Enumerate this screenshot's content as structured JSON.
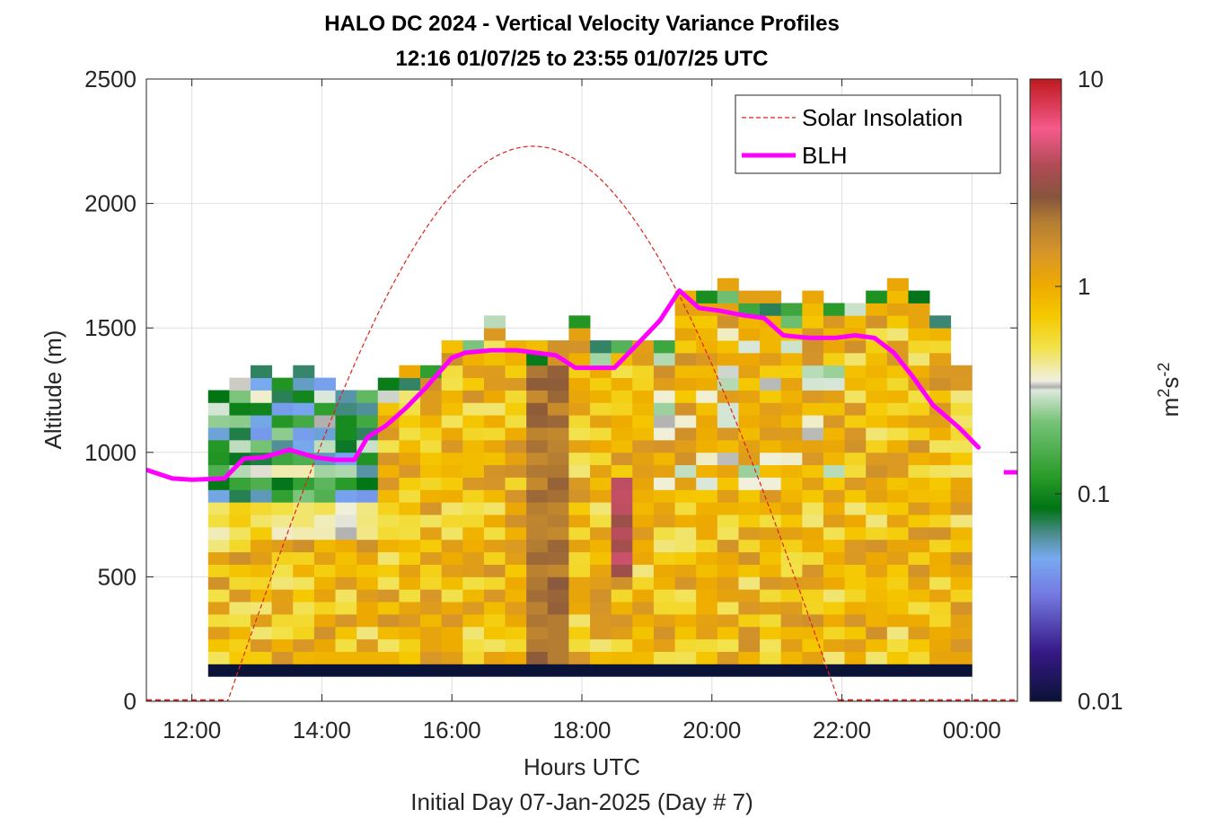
{
  "chart_data": {
    "type": "heatmap",
    "title": "HALO DC 2024 - Vertical Velocity Variance Profiles",
    "subtitle": "12:16 01/07/25 to 23:55 01/07/25  UTC",
    "xlabel": "Hours UTC",
    "x_sublabel": "Initial Day 07-Jan-2025 (Day # 7)",
    "ylabel": "Altitude (m)",
    "colorbar_label": "m²s⁻²",
    "colorbar_label_parts": {
      "unit1": "m",
      "exp1": "2",
      "unit2": "s",
      "exp2": "-2"
    },
    "xlim": [
      11.3,
      24.7
    ],
    "ylim": [
      0,
      2500
    ],
    "x_ticks": [
      12,
      14,
      16,
      18,
      20,
      22,
      24
    ],
    "x_tick_labels": [
      "12:00",
      "14:00",
      "16:00",
      "18:00",
      "20:00",
      "22:00",
      "00:00"
    ],
    "y_ticks": [
      0,
      500,
      1000,
      1500,
      2000,
      2500
    ],
    "y_tick_labels": [
      "0",
      "500",
      "1000",
      "1500",
      "2000",
      "2500"
    ],
    "color_scale": "log",
    "clim": [
      0.01,
      10
    ],
    "colorbar_ticks": [
      0.01,
      0.1,
      1,
      10
    ],
    "colorbar_tick_labels": [
      "0.01",
      "0.1",
      "1",
      "10"
    ],
    "grid": true,
    "legend_position": "top-right",
    "legend": [
      {
        "name": "Solar Insolation",
        "style": "dashed",
        "color": "#e0201b"
      },
      {
        "name": "BLH",
        "style": "solid",
        "color": "#ff00ff"
      }
    ],
    "heatmap_time_range": [
      12.25,
      24.0
    ],
    "heatmap_columns": 36,
    "heatmap_altitude_bottom": 100,
    "heatmap_bin_height": 50,
    "column_top_altitudes": [
      1250,
      1300,
      1350,
      1300,
      1350,
      1300,
      1250,
      1250,
      1300,
      1350,
      1350,
      1450,
      1450,
      1550,
      1450,
      1450,
      1450,
      1550,
      1450,
      1450,
      1450,
      1450,
      1650,
      1650,
      1700,
      1650,
      1650,
      1600,
      1650,
      1600,
      1600,
      1650,
      1700,
      1650,
      1550,
      1350
    ],
    "blh": {
      "name": "BLH",
      "x": [
        11.3,
        11.7,
        12.0,
        12.5,
        12.8,
        13.1,
        13.5,
        13.9,
        14.2,
        14.5,
        14.7,
        15.0,
        15.3,
        15.6,
        16.0,
        16.2,
        16.6,
        17.0,
        17.3,
        17.6,
        17.9,
        18.2,
        18.5,
        18.8,
        19.2,
        19.5,
        19.8,
        20.1,
        20.5,
        20.8,
        21.1,
        21.5,
        21.9,
        22.2,
        22.5,
        22.8,
        23.1,
        23.4,
        23.8,
        24.1
      ],
      "y": [
        930,
        895,
        890,
        895,
        975,
        980,
        1010,
        980,
        970,
        970,
        1060,
        1110,
        1180,
        1260,
        1380,
        1400,
        1410,
        1410,
        1400,
        1390,
        1340,
        1340,
        1340,
        1420,
        1530,
        1650,
        1580,
        1570,
        1550,
        1540,
        1470,
        1460,
        1460,
        1470,
        1460,
        1400,
        1300,
        1190,
        1100,
        1020
      ],
      "isolated_point": {
        "x": 24.6,
        "y": 920
      }
    },
    "solar_insolation": {
      "name": "Solar Insolation",
      "sunrise_hour": 12.55,
      "sunset_hour": 21.95,
      "peak_hour": 17.25,
      "peak_display_altitude": 2230
    }
  }
}
